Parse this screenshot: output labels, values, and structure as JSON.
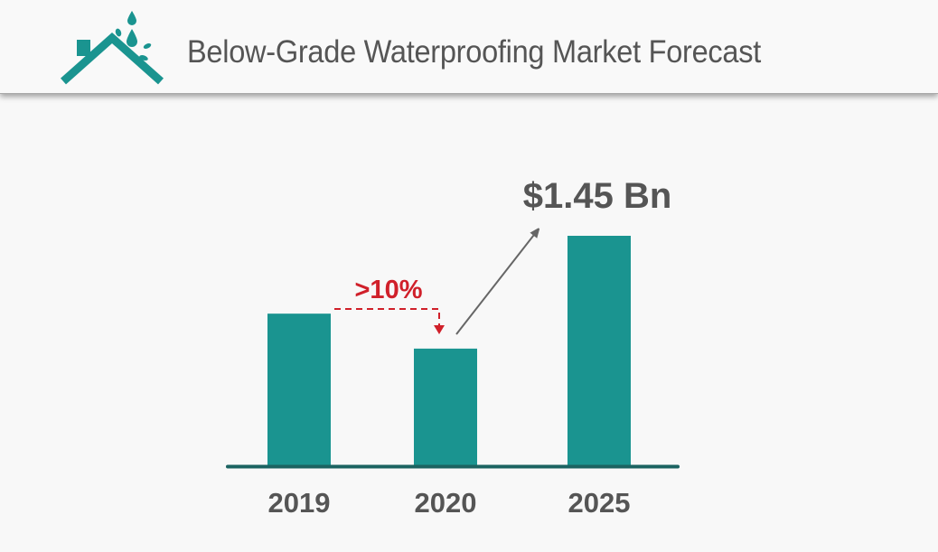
{
  "header": {
    "title": "Below-Grade Waterproofing Market Forecast",
    "logo_icon": "roof-with-water-drops-icon"
  },
  "colors": {
    "bar": "#1a9490",
    "baseline": "#1b6361",
    "text": "#555555",
    "annotation_red": "#d0202a",
    "arrow_gray": "#666666",
    "background": "#f8f8f8"
  },
  "chart_data": {
    "type": "bar",
    "title": "Below-Grade Waterproofing Market Forecast",
    "categories": [
      "2019",
      "2020",
      "2025"
    ],
    "values": [
      0.96,
      0.74,
      1.45
    ],
    "value_units": "USD Bn (2019 and 2020 estimated from bar heights)",
    "xlabel": "",
    "ylabel": "",
    "ylim": [
      0,
      1.45
    ],
    "grid": false,
    "legend": "none",
    "annotations": [
      {
        "text": ">10%",
        "type": "decline",
        "from": "2019",
        "to": "2020",
        "color": "#d0202a",
        "style": "dashed-arrow"
      },
      {
        "text": "$1.45 Bn",
        "type": "growth",
        "from": "2020",
        "to": "2025",
        "color": "#666666",
        "style": "solid-arrow"
      }
    ]
  }
}
